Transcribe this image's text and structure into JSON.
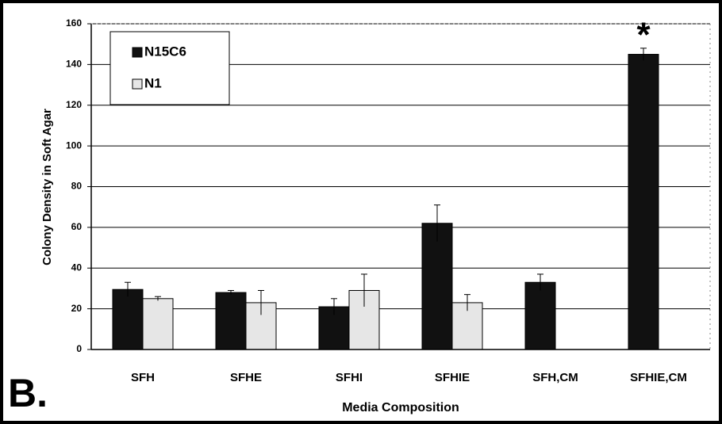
{
  "chart_data": {
    "type": "bar",
    "xlabel": "Media Composition",
    "ylabel": "Colony Density in Soft Agar",
    "categories": [
      "SFH",
      "SFHE",
      "SFHI",
      "SFHIE",
      "SFH,CM",
      "SFHIE,CM"
    ],
    "series": [
      {
        "name": "N15C6",
        "color": "#111111",
        "values": [
          29.5,
          28,
          21,
          62,
          33,
          145
        ],
        "errors": [
          3.5,
          1,
          4,
          9,
          4,
          3
        ]
      },
      {
        "name": "N1",
        "color": "#e6e6e6",
        "values": [
          25,
          23,
          29,
          23,
          null,
          null
        ],
        "errors": [
          1,
          6,
          8,
          4,
          null,
          null
        ]
      }
    ],
    "ylim": [
      0,
      160
    ],
    "yticks": [
      0,
      20,
      40,
      60,
      80,
      100,
      120,
      140,
      160
    ],
    "grid": true,
    "legend": "upper left",
    "annotations": [
      "*",
      "B."
    ]
  }
}
